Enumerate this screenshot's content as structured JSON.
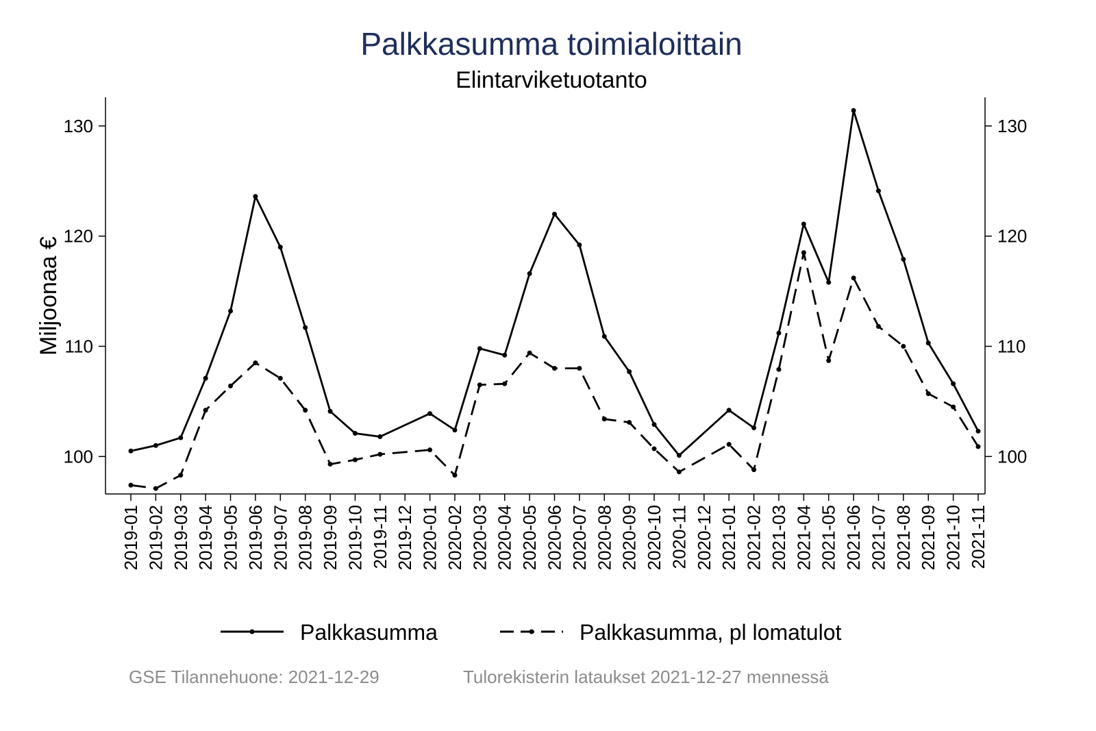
{
  "chart_data": {
    "type": "line",
    "title": "Palkkasumma toimialoittain",
    "subtitle": "Elintarviketuotanto",
    "xlabel": "",
    "ylabel": "Miljoonaa €",
    "ylim": [
      96.6,
      132.6
    ],
    "yticks": [
      100,
      110,
      120,
      130
    ],
    "grid": false,
    "legend_position": "bottom",
    "categories": [
      "2019-01",
      "2019-02",
      "2019-03",
      "2019-04",
      "2019-05",
      "2019-06",
      "2019-07",
      "2019-08",
      "2019-09",
      "2019-10",
      "2019-11",
      "2019-12",
      "2020-01",
      "2020-02",
      "2020-03",
      "2020-04",
      "2020-05",
      "2020-06",
      "2020-07",
      "2020-08",
      "2020-09",
      "2020-10",
      "2020-11",
      "2020-12",
      "2021-01",
      "2021-02",
      "2021-03",
      "2021-04",
      "2021-05",
      "2021-06",
      "2021-07",
      "2021-08",
      "2021-09",
      "2021-10",
      "2021-11"
    ],
    "series": [
      {
        "name": "Palkkasumma",
        "style": "solid",
        "values": [
          100.5,
          101.0,
          101.7,
          107.1,
          113.2,
          123.6,
          119.0,
          111.7,
          104.1,
          102.1,
          101.8,
          null,
          103.9,
          102.4,
          109.8,
          109.2,
          116.6,
          122.0,
          119.2,
          110.9,
          107.7,
          102.9,
          100.1,
          null,
          104.2,
          102.6,
          111.2,
          121.1,
          115.8,
          131.4,
          124.1,
          117.9,
          110.3,
          106.6,
          102.3
        ]
      },
      {
        "name": "Palkkasumma, pl lomatulot",
        "style": "dashed",
        "values": [
          97.4,
          97.1,
          98.3,
          104.2,
          106.4,
          108.5,
          107.1,
          104.2,
          99.3,
          99.7,
          100.2,
          null,
          100.6,
          98.3,
          106.5,
          106.6,
          109.4,
          108.0,
          108.0,
          103.4,
          103.1,
          100.7,
          98.6,
          null,
          101.1,
          98.8,
          107.9,
          118.5,
          108.7,
          116.2,
          111.8,
          110.0,
          105.7,
          104.5,
          100.9
        ]
      }
    ]
  },
  "footer": {
    "source": "GSE Tilannehuone: 2021-12-29",
    "note": "Tulorekisterin lataukset 2021-12-27 mennessä"
  },
  "colors": {
    "title": "#1f2d5a",
    "line": "#000000",
    "footer": "#8c8c8c"
  }
}
